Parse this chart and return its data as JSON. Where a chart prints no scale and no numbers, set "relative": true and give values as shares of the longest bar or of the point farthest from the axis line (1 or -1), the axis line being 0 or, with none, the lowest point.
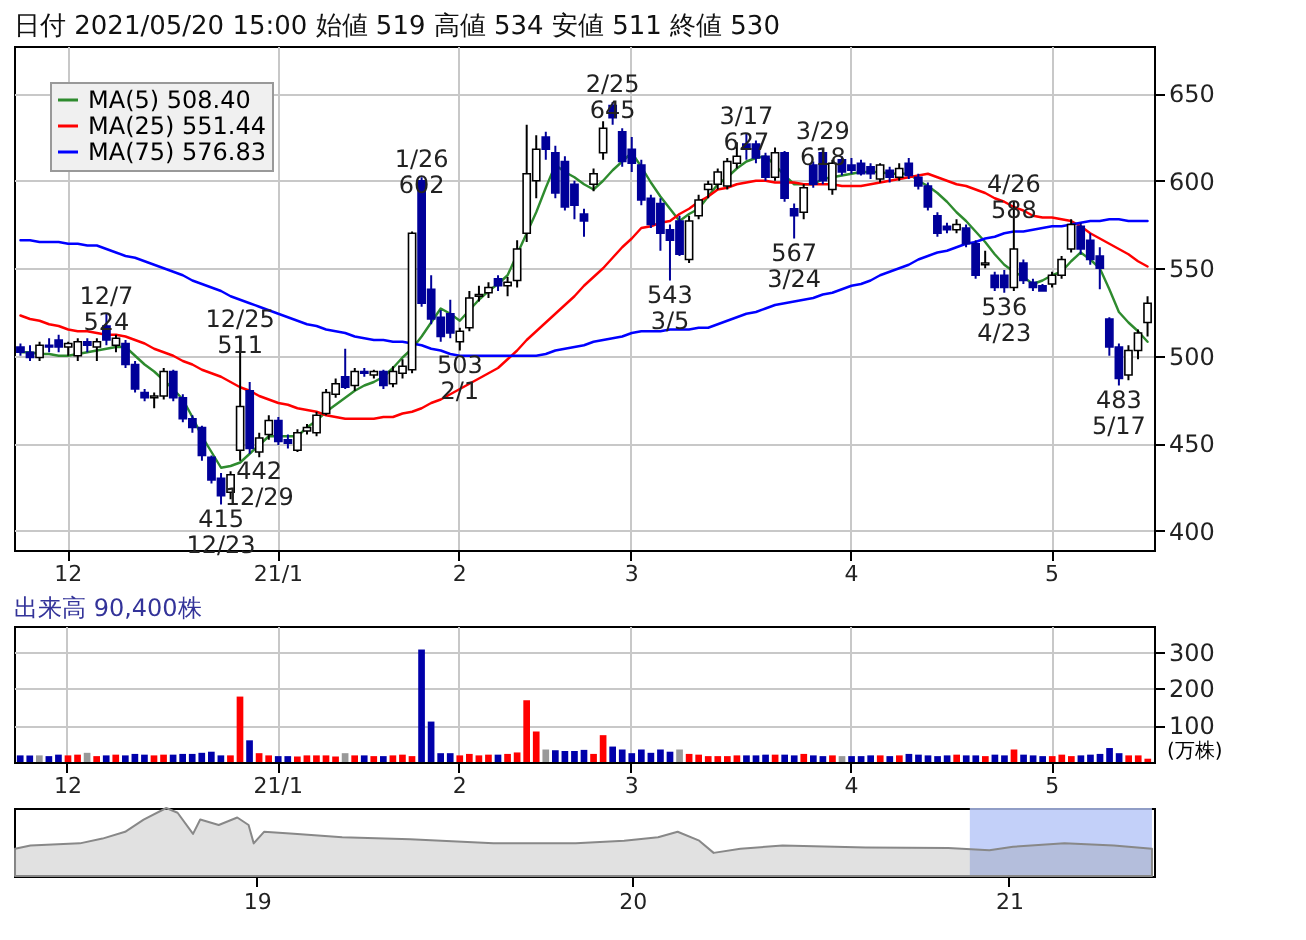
{
  "chart_data": [
    {
      "type": "candlestick",
      "title": "日付 2021/05/20 15:00 始値 519 高値 534 安値 511 終値 530",
      "categories": [
        null,
        null,
        null,
        null,
        null,
        "12",
        null,
        null,
        null,
        null,
        null,
        null,
        null,
        null,
        null,
        null,
        null,
        null,
        null,
        null,
        null,
        null,
        null,
        null,
        null,
        null,
        null,
        "21/1",
        null,
        null,
        null,
        null,
        null,
        null,
        null,
        null,
        null,
        null,
        null,
        null,
        null,
        null,
        null,
        null,
        null,
        null,
        "2",
        null,
        null,
        null,
        null,
        null,
        null,
        null,
        null,
        null,
        null,
        null,
        null,
        null,
        null,
        null,
        null,
        null,
        "3",
        null,
        null,
        null,
        null,
        null,
        null,
        null,
        null,
        null,
        null,
        null,
        null,
        null,
        null,
        null,
        null,
        null,
        null,
        null,
        null,
        null,
        null,
        "4",
        null,
        null,
        null,
        null,
        null,
        null,
        null,
        null,
        null,
        null,
        null,
        null,
        null,
        null,
        null,
        null,
        null,
        null,
        null,
        null,
        "5",
        null,
        null,
        null,
        null,
        null,
        null,
        null,
        null,
        null,
        null
      ],
      "ohlc": [
        [
          505,
          507,
          500,
          502
        ],
        [
          502,
          506,
          497,
          499
        ],
        [
          499,
          508,
          497,
          506
        ],
        [
          506,
          510,
          502,
          505
        ],
        [
          509,
          512,
          502,
          505
        ],
        [
          505,
          508,
          500,
          507
        ],
        [
          500,
          510,
          497,
          508
        ],
        [
          508,
          510,
          502,
          506
        ],
        [
          505,
          510,
          497,
          508
        ],
        [
          517,
          524,
          506,
          509
        ],
        [
          506,
          512,
          502,
          510
        ],
        [
          507,
          509,
          493,
          495
        ],
        [
          495,
          497,
          479,
          481
        ],
        [
          479,
          481,
          474,
          476
        ],
        [
          476,
          479,
          470,
          477
        ],
        [
          477,
          493,
          475,
          491
        ],
        [
          491,
          492,
          474,
          476
        ],
        [
          476,
          478,
          462,
          464
        ],
        [
          464,
          466,
          456,
          459
        ],
        [
          459,
          460,
          440,
          443
        ],
        [
          442,
          443,
          427,
          429
        ],
        [
          430,
          433,
          415,
          420
        ],
        [
          422,
          434,
          418,
          432
        ],
        [
          446,
          511,
          440,
          471
        ],
        [
          480,
          485,
          444,
          447
        ],
        [
          445,
          456,
          442,
          453
        ],
        [
          455,
          466,
          452,
          463
        ],
        [
          463,
          465,
          449,
          451
        ],
        [
          452,
          455,
          447,
          450
        ],
        [
          446,
          458,
          445,
          456
        ],
        [
          457,
          461,
          455,
          459
        ],
        [
          456,
          468,
          454,
          466
        ],
        [
          467,
          481,
          466,
          479
        ],
        [
          478,
          487,
          476,
          484
        ],
        [
          488,
          504,
          481,
          482
        ],
        [
          483,
          493,
          480,
          491
        ],
        [
          491,
          493,
          488,
          490
        ],
        [
          489,
          492,
          487,
          491
        ],
        [
          491,
          492,
          481,
          483
        ],
        [
          484,
          494,
          482,
          491
        ],
        [
          490,
          498,
          487,
          494
        ],
        [
          492,
          571,
          490,
          570
        ],
        [
          600,
          602,
          528,
          530
        ],
        [
          538,
          546,
          518,
          521
        ],
        [
          522,
          526,
          508,
          511
        ],
        [
          524,
          532,
          510,
          513
        ],
        [
          508,
          516,
          503,
          514
        ],
        [
          516,
          537,
          514,
          533
        ],
        [
          534,
          540,
          531,
          535
        ],
        [
          536,
          542,
          533,
          539
        ],
        [
          544,
          546,
          537,
          540
        ],
        [
          540,
          545,
          534,
          542
        ],
        [
          543,
          566,
          539,
          561
        ],
        [
          570,
          632,
          565,
          604
        ],
        [
          600,
          626,
          590,
          618
        ],
        [
          625,
          628,
          612,
          618
        ],
        [
          616,
          620,
          590,
          593
        ],
        [
          611,
          614,
          583,
          585
        ],
        [
          598,
          600,
          578,
          586
        ],
        [
          581,
          584,
          568,
          577
        ],
        [
          598,
          607,
          594,
          604
        ],
        [
          616,
          634,
          612,
          630
        ],
        [
          643,
          645,
          632,
          636
        ],
        [
          628,
          630,
          608,
          611
        ],
        [
          618,
          625,
          605,
          610
        ],
        [
          609,
          612,
          586,
          589
        ],
        [
          590,
          592,
          573,
          575
        ],
        [
          587,
          590,
          560,
          570
        ],
        [
          572,
          575,
          543,
          566
        ],
        [
          577,
          580,
          557,
          558
        ],
        [
          555,
          580,
          553,
          577
        ],
        [
          580,
          592,
          578,
          589
        ],
        [
          595,
          600,
          590,
          598
        ],
        [
          598,
          607,
          595,
          605
        ],
        [
          597,
          613,
          595,
          611
        ],
        [
          610,
          622,
          607,
          614
        ],
        [
          621,
          627,
          612,
          618
        ],
        [
          621,
          623,
          610,
          613
        ],
        [
          614,
          616,
          600,
          602
        ],
        [
          602,
          619,
          600,
          616
        ],
        [
          616,
          617,
          588,
          590
        ],
        [
          584,
          587,
          567,
          580
        ],
        [
          582,
          598,
          578,
          596
        ],
        [
          609,
          611,
          596,
          598
        ],
        [
          616,
          618,
          598,
          600
        ],
        [
          595,
          612,
          592,
          610
        ],
        [
          612,
          614,
          603,
          605
        ],
        [
          609,
          613,
          604,
          606
        ],
        [
          610,
          612,
          603,
          604
        ],
        [
          608,
          610,
          601,
          604
        ],
        [
          601,
          610,
          599,
          609
        ],
        [
          606,
          608,
          599,
          602
        ],
        [
          602,
          610,
          600,
          607
        ],
        [
          610,
          613,
          601,
          603
        ],
        [
          602,
          604,
          595,
          597
        ],
        [
          597,
          599,
          583,
          585
        ],
        [
          580,
          582,
          568,
          570
        ],
        [
          574,
          576,
          570,
          572
        ],
        [
          572,
          578,
          570,
          575
        ],
        [
          573,
          575,
          562,
          564
        ],
        [
          564,
          566,
          544,
          546
        ],
        [
          552,
          560,
          550,
          553
        ],
        [
          546,
          548,
          537,
          539
        ],
        [
          546,
          549,
          536,
          539
        ],
        [
          539,
          588,
          537,
          561
        ],
        [
          553,
          555,
          541,
          543
        ],
        [
          542,
          544,
          537,
          539
        ],
        [
          540,
          541,
          537,
          537
        ],
        [
          541,
          548,
          539,
          546
        ],
        [
          546,
          557,
          544,
          555
        ],
        [
          561,
          578,
          559,
          575
        ],
        [
          574,
          576,
          558,
          561
        ],
        [
          566,
          570,
          552,
          555
        ],
        [
          557,
          562,
          538,
          550
        ],
        [
          521,
          522,
          500,
          505
        ],
        [
          505,
          507,
          483,
          487
        ],
        [
          489,
          506,
          486,
          503
        ],
        [
          503,
          515,
          498,
          513
        ],
        [
          519,
          534,
          511,
          530
        ]
      ],
      "series": [
        {
          "type": "line",
          "name": "MA(5) 508.40",
          "color": "#2e8b2e",
          "values": [
            502,
            502,
            501,
            501,
            500,
            500,
            501,
            502,
            503,
            504,
            505,
            505,
            500,
            495,
            491,
            486,
            481,
            475,
            465,
            454,
            445,
            436,
            437,
            439,
            444,
            449,
            454,
            454,
            454,
            454,
            459,
            463,
            468,
            472,
            476,
            480,
            483,
            485,
            488,
            493,
            499,
            504,
            511,
            519,
            527,
            524,
            520,
            526,
            532,
            537,
            541,
            546,
            558,
            570,
            582,
            596,
            609,
            605,
            602,
            598,
            595,
            600,
            606,
            611,
            616,
            608,
            599,
            591,
            584,
            577,
            581,
            584,
            591,
            598,
            602,
            607,
            611,
            613,
            614,
            609,
            603,
            598,
            598,
            598,
            601,
            602,
            603,
            604,
            605,
            605,
            605,
            604,
            604,
            604,
            600,
            597,
            593,
            588,
            582,
            577,
            571,
            565,
            558,
            552,
            548,
            545,
            541,
            543,
            546,
            548,
            554,
            559,
            555,
            550,
            538,
            525,
            519,
            514,
            508
          ]
        },
        {
          "type": "line",
          "name": "MA(25) 551.44",
          "color": "#ff0000",
          "values": [
            523,
            521,
            520,
            518,
            517,
            515,
            514,
            514,
            513,
            512,
            512,
            511,
            509,
            507,
            504,
            502,
            500,
            497,
            495,
            492,
            490,
            488,
            485,
            482,
            480,
            477,
            475,
            473,
            472,
            470,
            469,
            468,
            466,
            465,
            464,
            464,
            464,
            464,
            465,
            465,
            467,
            468,
            470,
            473,
            475,
            478,
            481,
            484,
            487,
            490,
            493,
            498,
            503,
            509,
            514,
            519,
            524,
            529,
            534,
            540,
            545,
            550,
            556,
            562,
            567,
            573,
            574,
            576,
            577,
            581,
            584,
            588,
            591,
            595,
            596,
            598,
            599,
            600,
            600,
            599,
            599,
            599,
            598,
            598,
            598,
            598,
            597,
            597,
            597,
            598,
            599,
            600,
            601,
            602,
            603,
            604,
            602,
            600,
            598,
            597,
            595,
            593,
            590,
            588,
            585,
            583,
            580,
            579,
            579,
            578,
            577,
            574,
            570,
            567,
            564,
            561,
            558,
            554,
            551
          ]
        },
        {
          "type": "line",
          "name": "MA(75) 576.83",
          "color": "#0000ff",
          "values": [
            566,
            566,
            565,
            565,
            565,
            564,
            564,
            563,
            563,
            561,
            559,
            557,
            556,
            554,
            552,
            550,
            548,
            546,
            543,
            541,
            539,
            537,
            534,
            532,
            530,
            528,
            526,
            524,
            522,
            520,
            518,
            517,
            515,
            514,
            513,
            511,
            510,
            509,
            509,
            508,
            508,
            507,
            506,
            504,
            503,
            501,
            500,
            500,
            500,
            500,
            500,
            500,
            500,
            500,
            500,
            501,
            503,
            504,
            505,
            506,
            508,
            509,
            510,
            511,
            513,
            514,
            514,
            514,
            515,
            515,
            515,
            516,
            516,
            518,
            520,
            522,
            524,
            525,
            527,
            529,
            530,
            531,
            532,
            533,
            535,
            536,
            538,
            540,
            541,
            543,
            546,
            548,
            550,
            552,
            555,
            557,
            559,
            560,
            562,
            564,
            565,
            567,
            568,
            570,
            571,
            571,
            572,
            573,
            574,
            574,
            575,
            576,
            577,
            577,
            578,
            578,
            577,
            577,
            577
          ]
        }
      ],
      "ylim": [
        389,
        677
      ],
      "yticks": [
        400,
        450,
        500,
        550,
        600,
        650
      ],
      "grid": true,
      "legend": "top left",
      "annotations": [
        {
          "text": "12/7\n524",
          "y": 524
        },
        {
          "text": "12/25\n511",
          "y": 511
        },
        {
          "text": "1/26\n602",
          "y": 602
        },
        {
          "text": "2/25\n645",
          "y": 645
        },
        {
          "text": "3/17\n627",
          "y": 627
        },
        {
          "text": "3/29\n618",
          "y": 618
        },
        {
          "text": "4/26\n588",
          "y": 588
        },
        {
          "text": "442\n12/29",
          "y": 442
        },
        {
          "text": "415\n12/23",
          "y": 415
        },
        {
          "text": "503\n2/1",
          "y": 503
        },
        {
          "text": "543\n3/5",
          "y": 543
        },
        {
          "text": "567\n3/24",
          "y": 567
        },
        {
          "text": "536\n4/23",
          "y": 536
        },
        {
          "text": "483\n5/17",
          "y": 483
        }
      ]
    },
    {
      "type": "bar",
      "title": "出来高 90,400株",
      "ylabel": "(万株)",
      "categories": [
        null,
        null,
        null,
        null,
        null,
        "12",
        null,
        null,
        null,
        null,
        null,
        null,
        null,
        null,
        null,
        null,
        null,
        null,
        null,
        null,
        null,
        null,
        null,
        null,
        null,
        null,
        null,
        "21/1",
        null,
        null,
        null,
        null,
        null,
        null,
        null,
        null,
        null,
        null,
        null,
        null,
        null,
        null,
        null,
        null,
        null,
        null,
        "2",
        null,
        null,
        null,
        null,
        null,
        null,
        null,
        null,
        null,
        null,
        null,
        null,
        null,
        null,
        null,
        null,
        null,
        "3",
        null,
        null,
        null,
        null,
        null,
        null,
        null,
        null,
        null,
        null,
        null,
        null,
        null,
        null,
        null,
        null,
        null,
        null,
        null,
        null,
        null,
        null,
        "4",
        null,
        null,
        null,
        null,
        null,
        null,
        null,
        null,
        null,
        null,
        null,
        null,
        null,
        null,
        null,
        null,
        null,
        null,
        null,
        null,
        "5",
        null,
        null,
        null,
        null,
        null,
        null,
        null,
        null,
        null,
        null
      ],
      "values": [
        18,
        18,
        18,
        16,
        20,
        18,
        20,
        25,
        16,
        18,
        20,
        18,
        22,
        20,
        18,
        20,
        20,
        22,
        22,
        25,
        28,
        18,
        18,
        178,
        59,
        24,
        18,
        16,
        16,
        15,
        18,
        18,
        18,
        15,
        24,
        18,
        18,
        16,
        16,
        18,
        20,
        16,
        306,
        110,
        24,
        24,
        18,
        22,
        18,
        20,
        20,
        22,
        26,
        168,
        83,
        34,
        32,
        30,
        30,
        33,
        22,
        73,
        42,
        34,
        24,
        34,
        25,
        34,
        28,
        34,
        22,
        20,
        16,
        16,
        16,
        18,
        18,
        18,
        20,
        20,
        20,
        18,
        22,
        18,
        16,
        18,
        16,
        16,
        16,
        18,
        18,
        16,
        18,
        22,
        20,
        18,
        16,
        18,
        20,
        18,
        18,
        16,
        20,
        18,
        34,
        20,
        18,
        16,
        16,
        20,
        16,
        18,
        20,
        22,
        38,
        24,
        18,
        18,
        9
      ],
      "colors": [
        "#0000aa",
        "#0000aa",
        "#999999",
        "#0000aa",
        "#0000aa",
        "#ff0000",
        "#ff0000",
        "#999999",
        "#ff0000",
        "#0000aa",
        "#ff0000",
        "#0000aa",
        "#0000aa",
        "#0000aa",
        "#ff0000",
        "#ff0000",
        "#0000aa",
        "#0000aa",
        "#0000aa",
        "#0000aa",
        "#0000aa",
        "#0000aa",
        "#ff0000",
        "#ff0000",
        "#0000aa",
        "#ff0000",
        "#ff0000",
        "#0000aa",
        "#0000aa",
        "#ff0000",
        "#ff0000",
        "#ff0000",
        "#ff0000",
        "#ff0000",
        "#999999",
        "#ff0000",
        "#0000aa",
        "#ff0000",
        "#0000aa",
        "#ff0000",
        "#ff0000",
        "#ff0000",
        "#0000aa",
        "#0000aa",
        "#0000aa",
        "#0000aa",
        "#ff0000",
        "#ff0000",
        "#ff0000",
        "#ff0000",
        "#0000aa",
        "#ff0000",
        "#ff0000",
        "#ff0000",
        "#ff0000",
        "#999999",
        "#0000aa",
        "#0000aa",
        "#0000aa",
        "#0000aa",
        "#ff0000",
        "#ff0000",
        "#0000aa",
        "#0000aa",
        "#0000aa",
        "#0000aa",
        "#0000aa",
        "#0000aa",
        "#0000aa",
        "#999999",
        "#ff0000",
        "#ff0000",
        "#ff0000",
        "#ff0000",
        "#ff0000",
        "#ff0000",
        "#0000aa",
        "#0000aa",
        "#0000aa",
        "#ff0000",
        "#0000aa",
        "#0000aa",
        "#ff0000",
        "#0000aa",
        "#0000aa",
        "#ff0000",
        "#999999",
        "#0000aa",
        "#0000aa",
        "#0000aa",
        "#ff0000",
        "#0000aa",
        "#ff0000",
        "#0000aa",
        "#0000aa",
        "#0000aa",
        "#0000aa",
        "#0000aa",
        "#ff0000",
        "#0000aa",
        "#0000aa",
        "#ff0000",
        "#0000aa",
        "#0000aa",
        "#ff0000",
        "#0000aa",
        "#0000aa",
        "#0000aa",
        "#ff0000",
        "#ff0000",
        "#ff0000",
        "#0000aa",
        "#0000aa",
        "#0000aa",
        "#0000aa",
        "#0000aa",
        "#ff0000",
        "#ff0000",
        "#ff0000"
      ],
      "ylim": [
        0,
        370
      ],
      "yticks": [
        100,
        200,
        300
      ],
      "grid": true
    },
    {
      "type": "area",
      "relative": true,
      "color": "#888888",
      "x": [
        "2018-05-11",
        "2018-05-26",
        "2018-07-13",
        "2018-08-04",
        "2018-08-26",
        "2018-09-13",
        "2018-10-05",
        "2018-10-16",
        "2018-10-31",
        "2018-11-07",
        "2018-11-25",
        "2018-12-13",
        "2018-12-24",
        "2018-12-29",
        "2019-01-08",
        "2019-02-06",
        "2019-03-25",
        "2019-05-30",
        "2019-08-19",
        "2019-11-07",
        "2019-12-24",
        "2020-01-26",
        "2020-02-14",
        "2020-03-06",
        "2020-03-20",
        "2020-04-15",
        "2020-05-26",
        "2020-08-15",
        "2020-11-03",
        "2020-12-13",
        "2021-01-05",
        "2021-02-24",
        "2021-04-13",
        "2021-05-20"
      ],
      "values": [
        0.4,
        0.45,
        0.48,
        0.55,
        0.65,
        0.83,
        1.0,
        0.93,
        0.62,
        0.83,
        0.75,
        0.86,
        0.75,
        0.48,
        0.65,
        0.62,
        0.57,
        0.54,
        0.48,
        0.48,
        0.52,
        0.57,
        0.65,
        0.52,
        0.34,
        0.4,
        0.45,
        0.42,
        0.41,
        0.38,
        0.43,
        0.48,
        0.45,
        0.4
      ],
      "xlim": [
        "2018-05-10",
        "2021-05-22"
      ],
      "xticks": [
        {
          "value": "2019-01-01",
          "label": "19"
        },
        {
          "value": "2020-01-01",
          "label": "20"
        },
        {
          "value": "2021-01-01",
          "label": "21"
        }
      ],
      "bands": [
        {
          "axis": "x",
          "from": "2020-11-24",
          "to": "2021-05-20",
          "color": "#b4c4f8"
        }
      ]
    }
  ]
}
